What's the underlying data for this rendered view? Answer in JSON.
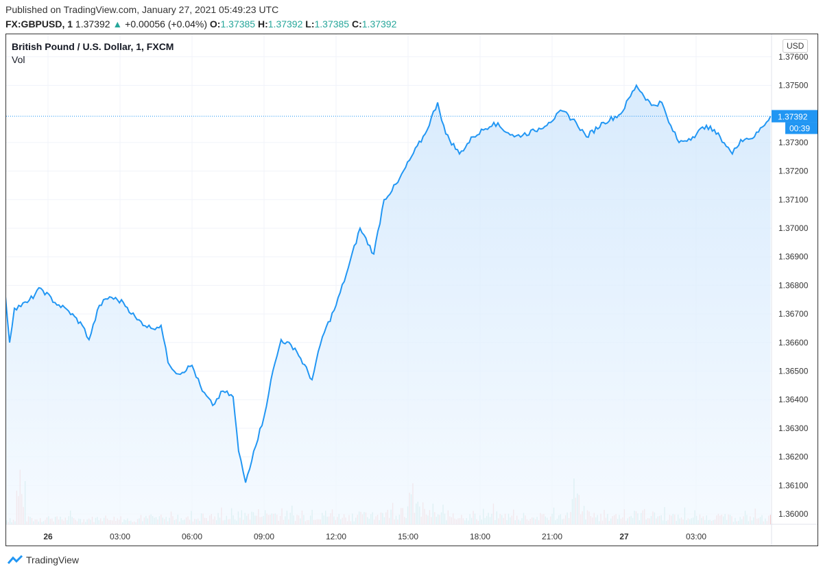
{
  "header": {
    "published": "Published on TradingView.com, January 27, 2021 05:49:23 UTC",
    "symbol": "FX:GBPUSD, 1",
    "last": "1.37392",
    "arrow": "▲",
    "change": "+0.00056 (+0.04%)",
    "o_label": "O:",
    "o": "1.37385",
    "h_label": "H:",
    "h": "1.37392",
    "l_label": "L:",
    "l": "1.37385",
    "c_label": "C:",
    "c": "1.37392"
  },
  "legend": {
    "title": "British Pound / U.S. Dollar, 1, FXCM",
    "vol": "Vol"
  },
  "currency": "USD",
  "brand": "TradingView",
  "colors": {
    "line": "#2196f3",
    "up": "#26a69a",
    "down": "#ef5350"
  },
  "chart_data": {
    "type": "area",
    "title": "British Pound / U.S. Dollar, 1, FXCM",
    "xlabel": "",
    "ylabel": "",
    "ylim": [
      1.3582,
      1.3766
    ],
    "x_unit": "hours since Jan 26 00:00 UTC",
    "xlim": [
      -1.77,
      30.1
    ],
    "y_ticks": [
      "1.37600",
      "1.37500",
      "1.37300",
      "1.37200",
      "1.37100",
      "1.37000",
      "1.36900",
      "1.36800",
      "1.36700",
      "1.36600",
      "1.36500",
      "1.36400",
      "1.36300",
      "1.36200",
      "1.36100",
      "1.36000"
    ],
    "x_ticks": [
      {
        "h": 0,
        "label": "26",
        "bold": true
      },
      {
        "h": 3,
        "label": "03:00"
      },
      {
        "h": 6,
        "label": "06:00"
      },
      {
        "h": 9,
        "label": "09:00"
      },
      {
        "h": 12,
        "label": "12:00"
      },
      {
        "h": 15,
        "label": "15:00"
      },
      {
        "h": 18,
        "label": "18:00"
      },
      {
        "h": 21,
        "label": "21:00"
      },
      {
        "h": 24,
        "label": "27",
        "bold": true
      },
      {
        "h": 27,
        "label": "03:00"
      }
    ],
    "last_price": "1.37392",
    "countdown": "00:39",
    "price": [
      [
        -1.77,
        1.3676
      ],
      [
        -1.6,
        1.366
      ],
      [
        -1.4,
        1.3672
      ],
      [
        -0.86,
        1.3674
      ],
      [
        -0.3,
        1.3679
      ],
      [
        0.29,
        1.3674
      ],
      [
        0.86,
        1.3671
      ],
      [
        1.43,
        1.3666
      ],
      [
        1.71,
        1.3661
      ],
      [
        2.14,
        1.3673
      ],
      [
        2.57,
        1.3676
      ],
      [
        3.14,
        1.3674
      ],
      [
        3.71,
        1.3668
      ],
      [
        4.29,
        1.3665
      ],
      [
        4.71,
        1.3666
      ],
      [
        5.0,
        1.3653
      ],
      [
        5.43,
        1.3649
      ],
      [
        6.0,
        1.3652
      ],
      [
        6.43,
        1.3643
      ],
      [
        6.86,
        1.3638
      ],
      [
        7.29,
        1.3643
      ],
      [
        7.71,
        1.3641
      ],
      [
        7.94,
        1.3622
      ],
      [
        8.23,
        1.3611
      ],
      [
        8.57,
        1.3622
      ],
      [
        9.0,
        1.3634
      ],
      [
        9.29,
        1.3647
      ],
      [
        9.71,
        1.3661
      ],
      [
        10.29,
        1.3658
      ],
      [
        11.0,
        1.3647
      ],
      [
        11.43,
        1.3662
      ],
      [
        12.0,
        1.3673
      ],
      [
        12.43,
        1.3684
      ],
      [
        13.0,
        1.37
      ],
      [
        13.57,
        1.3691
      ],
      [
        14.0,
        1.371
      ],
      [
        14.57,
        1.3716
      ],
      [
        15.14,
        1.3725
      ],
      [
        15.71,
        1.3733
      ],
      [
        16.23,
        1.3744
      ],
      [
        16.57,
        1.3733
      ],
      [
        17.14,
        1.3726
      ],
      [
        17.71,
        1.3732
      ],
      [
        18.57,
        1.3737
      ],
      [
        19.43,
        1.3732
      ],
      [
        20.29,
        1.3734
      ],
      [
        20.86,
        1.3737
      ],
      [
        21.43,
        1.3741
      ],
      [
        22.0,
        1.3737
      ],
      [
        22.43,
        1.3732
      ],
      [
        23.14,
        1.3737
      ],
      [
        23.86,
        1.374
      ],
      [
        24.51,
        1.375
      ],
      [
        25.14,
        1.3743
      ],
      [
        25.57,
        1.3744
      ],
      [
        25.86,
        1.3737
      ],
      [
        26.29,
        1.373
      ],
      [
        26.86,
        1.3732
      ],
      [
        27.43,
        1.3736
      ],
      [
        28.0,
        1.3732
      ],
      [
        28.51,
        1.3726
      ],
      [
        28.86,
        1.3731
      ],
      [
        29.43,
        1.3732
      ],
      [
        30.1,
        1.37392
      ]
    ],
    "volume": [
      8,
      55,
      10,
      9,
      12,
      10,
      11,
      9,
      10,
      12,
      11,
      10,
      9,
      11,
      12,
      10,
      13,
      12,
      11,
      14,
      12,
      15,
      13,
      16,
      18,
      20,
      19,
      17,
      16,
      15,
      17,
      18,
      16,
      15,
      14,
      16,
      18,
      20,
      22,
      28,
      40,
      22,
      18,
      17,
      16,
      15,
      14,
      15,
      16,
      15,
      14,
      13,
      12,
      14,
      15,
      16,
      42,
      18,
      14,
      13,
      15,
      16,
      17,
      18,
      16,
      15,
      13,
      14,
      12,
      13,
      14,
      12,
      11,
      12,
      13,
      12
    ]
  }
}
